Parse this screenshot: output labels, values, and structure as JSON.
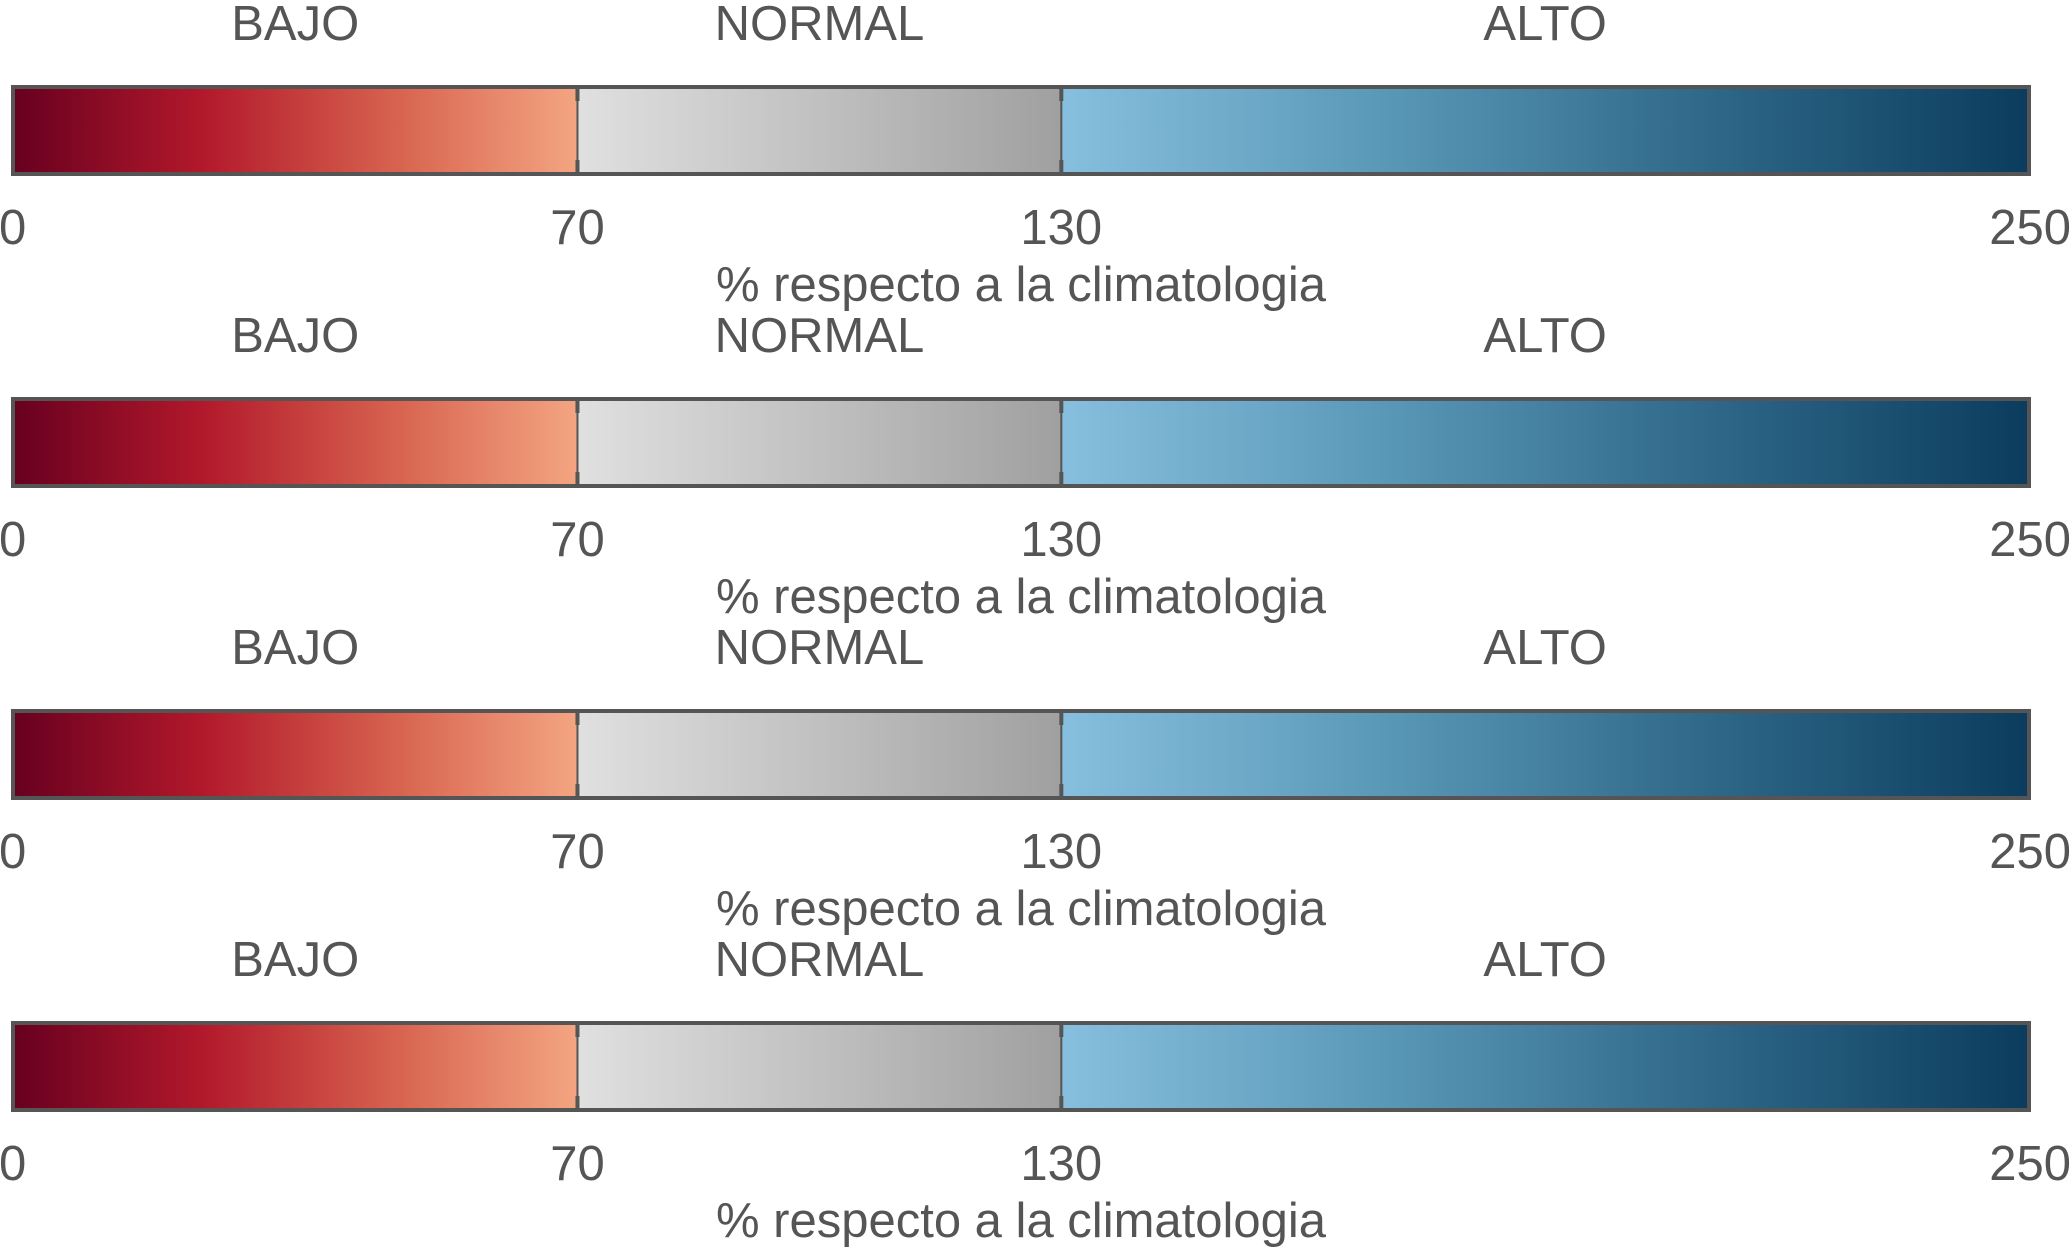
{
  "chart_data": [
    {
      "type": "colorbar",
      "xlabel": "% respecto a la climatologia",
      "range": [
        0,
        250
      ],
      "ticks": [
        0,
        70,
        130,
        250
      ],
      "categories": [
        {
          "label": "BAJO",
          "from": 0,
          "to": 70,
          "colors": [
            "#67001f",
            "#b2182b",
            "#d6604d",
            "#f4a582"
          ]
        },
        {
          "label": "NORMAL",
          "from": 70,
          "to": 130,
          "colors": [
            "#e0e0e0",
            "#a0a0a0"
          ]
        },
        {
          "label": "ALTO",
          "from": 130,
          "to": 250,
          "colors": [
            "#87bfde",
            "#5a98b8",
            "#2f6889",
            "#0b3c5d"
          ]
        }
      ]
    },
    {
      "type": "colorbar",
      "xlabel": "% respecto a la climatologia",
      "range": [
        0,
        250
      ],
      "ticks": [
        0,
        70,
        130,
        250
      ],
      "categories": [
        {
          "label": "BAJO",
          "from": 0,
          "to": 70,
          "colors": [
            "#67001f",
            "#b2182b",
            "#d6604d",
            "#f4a582"
          ]
        },
        {
          "label": "NORMAL",
          "from": 70,
          "to": 130,
          "colors": [
            "#e0e0e0",
            "#a0a0a0"
          ]
        },
        {
          "label": "ALTO",
          "from": 130,
          "to": 250,
          "colors": [
            "#87bfde",
            "#5a98b8",
            "#2f6889",
            "#0b3c5d"
          ]
        }
      ]
    },
    {
      "type": "colorbar",
      "xlabel": "% respecto a la climatologia",
      "range": [
        0,
        250
      ],
      "ticks": [
        0,
        70,
        130,
        250
      ],
      "categories": [
        {
          "label": "BAJO",
          "from": 0,
          "to": 70,
          "colors": [
            "#67001f",
            "#b2182b",
            "#d6604d",
            "#f4a582"
          ]
        },
        {
          "label": "NORMAL",
          "from": 70,
          "to": 130,
          "colors": [
            "#e0e0e0",
            "#a0a0a0"
          ]
        },
        {
          "label": "ALTO",
          "from": 130,
          "to": 250,
          "colors": [
            "#87bfde",
            "#5a98b8",
            "#2f6889",
            "#0b3c5d"
          ]
        }
      ]
    },
    {
      "type": "colorbar",
      "xlabel": "% respecto a la climatologia",
      "range": [
        0,
        250
      ],
      "ticks": [
        0,
        70,
        130,
        250
      ],
      "categories": [
        {
          "label": "BAJO",
          "from": 0,
          "to": 70,
          "colors": [
            "#67001f",
            "#b2182b",
            "#d6604d",
            "#f4a582"
          ]
        },
        {
          "label": "NORMAL",
          "from": 70,
          "to": 130,
          "colors": [
            "#e0e0e0",
            "#a0a0a0"
          ]
        },
        {
          "label": "ALTO",
          "from": 130,
          "to": 250,
          "colors": [
            "#87bfde",
            "#5a98b8",
            "#2f6889",
            "#0b3c5d"
          ]
        }
      ]
    }
  ]
}
